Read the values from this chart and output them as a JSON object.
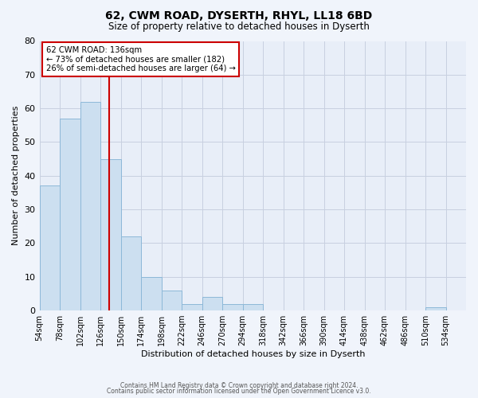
{
  "title": "62, CWM ROAD, DYSERTH, RHYL, LL18 6BD",
  "subtitle": "Size of property relative to detached houses in Dyserth",
  "xlabel": "Distribution of detached houses by size in Dyserth",
  "ylabel": "Number of detached properties",
  "bin_labels": [
    "54sqm",
    "78sqm",
    "102sqm",
    "126sqm",
    "150sqm",
    "174sqm",
    "198sqm",
    "222sqm",
    "246sqm",
    "270sqm",
    "294sqm",
    "318sqm",
    "342sqm",
    "366sqm",
    "390sqm",
    "414sqm",
    "438sqm",
    "462sqm",
    "486sqm",
    "510sqm",
    "534sqm"
  ],
  "bin_edges": [
    54,
    78,
    102,
    126,
    150,
    174,
    198,
    222,
    246,
    270,
    294,
    318,
    342,
    366,
    390,
    414,
    438,
    462,
    486,
    510,
    534,
    558
  ],
  "bar_values": [
    37,
    57,
    62,
    45,
    22,
    10,
    6,
    2,
    4,
    2,
    2,
    0,
    0,
    0,
    0,
    0,
    0,
    0,
    0,
    1,
    0
  ],
  "bar_color": "#ccdff0",
  "bar_edge_color": "#8db8d8",
  "property_value": 136,
  "property_label": "62 CWM ROAD: 136sqm",
  "annotation_line1": "← 73% of detached houses are smaller (182)",
  "annotation_line2": "26% of semi-detached houses are larger (64) →",
  "annotation_box_color": "#ffffff",
  "annotation_box_edge_color": "#cc0000",
  "vline_color": "#cc0000",
  "ylim": [
    0,
    80
  ],
  "yticks": [
    0,
    10,
    20,
    30,
    40,
    50,
    60,
    70,
    80
  ],
  "grid_color": "#c8d0e0",
  "plot_bg_color": "#e8eef8",
  "fig_bg_color": "#f0f4fb",
  "footer_line1": "Contains HM Land Registry data © Crown copyright and database right 2024.",
  "footer_line2": "Contains public sector information licensed under the Open Government Licence v3.0."
}
